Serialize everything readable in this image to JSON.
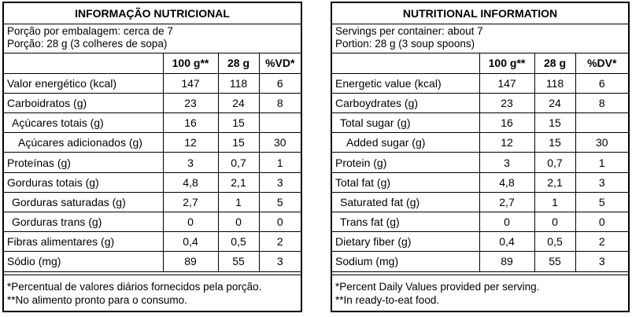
{
  "pt": {
    "title": "INFORMAÇÃO NUTRICIONAL",
    "serving_line1": "Porção por embalagem: cerca de 7",
    "serving_line2": "Porção: 28 g (3 colheres de sopa)",
    "headers": [
      "",
      "100 g**",
      "28 g",
      "%VD*"
    ],
    "rows": [
      {
        "label": "Valor energético (kcal)",
        "indent": 0,
        "v100": "147",
        "vp": "118",
        "vd": "6"
      },
      {
        "label": "Carboidratos (g)",
        "indent": 0,
        "v100": "23",
        "vp": "24",
        "vd": "8"
      },
      {
        "label": "Açúcares totais (g)",
        "indent": 1,
        "v100": "16",
        "vp": "15",
        "vd": ""
      },
      {
        "label": "Açúcares adicionados (g)",
        "indent": 2,
        "v100": "12",
        "vp": "15",
        "vd": "30"
      },
      {
        "label": "Proteínas (g)",
        "indent": 0,
        "v100": "3",
        "vp": "0,7",
        "vd": "1"
      },
      {
        "label": "Gorduras totais (g)",
        "indent": 0,
        "v100": "4,8",
        "vp": "2,1",
        "vd": "3"
      },
      {
        "label": "Gorduras saturadas (g)",
        "indent": 1,
        "v100": "2,7",
        "vp": "1",
        "vd": "5"
      },
      {
        "label": "Gorduras trans (g)",
        "indent": 1,
        "v100": "0",
        "vp": "0",
        "vd": "0"
      },
      {
        "label": "Fibras alimentares (g)",
        "indent": 0,
        "v100": "0,4",
        "vp": "0,5",
        "vd": "2"
      },
      {
        "label": "Sódio (mg)",
        "indent": 0,
        "v100": "89",
        "vp": "55",
        "vd": "3"
      }
    ],
    "foot1": "*Percentual de valores diários fornecidos pela porção.",
    "foot2": "**No alimento pronto para o consumo."
  },
  "en": {
    "title": "NUTRITIONAL INFORMATION",
    "serving_line1": "Servings per container: about 7",
    "serving_line2": "Portion: 28 g (3 soup spoons)",
    "headers": [
      "",
      "100 g**",
      "28 g",
      "%DV*"
    ],
    "rows": [
      {
        "label": "Energetic value (kcal)",
        "indent": 0,
        "v100": "147",
        "vp": "118",
        "vd": "6"
      },
      {
        "label": "Carboydrates (g)",
        "indent": 0,
        "v100": "23",
        "vp": "24",
        "vd": "8"
      },
      {
        "label": "Total sugar (g)",
        "indent": 1,
        "v100": "16",
        "vp": "15",
        "vd": ""
      },
      {
        "label": "Added sugar (g)",
        "indent": 2,
        "v100": "12",
        "vp": "15",
        "vd": "30"
      },
      {
        "label": "Protein (g)",
        "indent": 0,
        "v100": "3",
        "vp": "0,7",
        "vd": "1"
      },
      {
        "label": "Total fat (g)",
        "indent": 0,
        "v100": "4,8",
        "vp": "2,1",
        "vd": "3"
      },
      {
        "label": "Saturated fat (g)",
        "indent": 1,
        "v100": "2,7",
        "vp": "1",
        "vd": "5"
      },
      {
        "label": "Trans fat (g)",
        "indent": 1,
        "v100": "0",
        "vp": "0",
        "vd": "0"
      },
      {
        "label": "Dietary fiber (g)",
        "indent": 0,
        "v100": "0,4",
        "vp": "0,5",
        "vd": "2"
      },
      {
        "label": "Sodium (mg)",
        "indent": 0,
        "v100": "89",
        "vp": "55",
        "vd": "3"
      }
    ],
    "foot1": "*Percent Daily Values provided per serving.",
    "foot2": "**In ready-to-eat food."
  }
}
